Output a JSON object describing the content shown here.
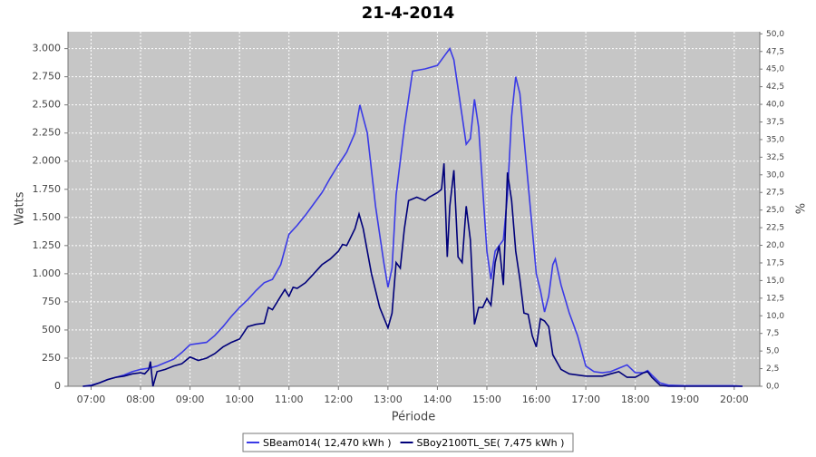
{
  "chart_data": {
    "type": "line",
    "title": "21-4-2014",
    "x_label": "Période",
    "y_label": "Watts",
    "y2_label": "%",
    "xlim": [
      "06:32",
      "20:31"
    ],
    "xticks": [
      "07:00",
      "08:00",
      "09:00",
      "10:00",
      "11:00",
      "12:00",
      "13:00",
      "14:00",
      "15:00",
      "16:00",
      "17:00",
      "18:00",
      "19:00",
      "20:00"
    ],
    "ylim": [
      0,
      3150
    ],
    "yticks": [
      {
        "value": 0,
        "label": "0"
      },
      {
        "value": 250,
        "label": "250"
      },
      {
        "value": 500,
        "label": "500"
      },
      {
        "value": 750,
        "label": "750"
      },
      {
        "value": 1000,
        "label": "1.000"
      },
      {
        "value": 1250,
        "label": "1.250"
      },
      {
        "value": 1500,
        "label": "1.500"
      },
      {
        "value": 1750,
        "label": "1.750"
      },
      {
        "value": 2000,
        "label": "2.000"
      },
      {
        "value": 2250,
        "label": "2.250"
      },
      {
        "value": 2500,
        "label": "2.500"
      },
      {
        "value": 2750,
        "label": "2.750"
      },
      {
        "value": 3000,
        "label": "3.000"
      }
    ],
    "y2lim": [
      0,
      50.3
    ],
    "y2ticks": [
      {
        "value": 0,
        "label": "0,0"
      },
      {
        "value": 2.5,
        "label": "2,5"
      },
      {
        "value": 5,
        "label": "5,0"
      },
      {
        "value": 7.5,
        "label": "7,5"
      },
      {
        "value": 10,
        "label": "10,0"
      },
      {
        "value": 12.5,
        "label": "12,5"
      },
      {
        "value": 15,
        "label": "15,0"
      },
      {
        "value": 17.5,
        "label": "17,5"
      },
      {
        "value": 20,
        "label": "20,0"
      },
      {
        "value": 22.5,
        "label": "22,5"
      },
      {
        "value": 25,
        "label": "25,0"
      },
      {
        "value": 27.5,
        "label": "27,5"
      },
      {
        "value": 30,
        "label": "30,0"
      },
      {
        "value": 32.5,
        "label": "32,5"
      },
      {
        "value": 35,
        "label": "35,0"
      },
      {
        "value": 37.5,
        "label": "37,5"
      },
      {
        "value": 40,
        "label": "40,0"
      },
      {
        "value": 42.5,
        "label": "42,5"
      },
      {
        "value": 45,
        "label": "45,0"
      },
      {
        "value": 47.5,
        "label": "47,5"
      },
      {
        "value": 50,
        "label": "50,0"
      }
    ],
    "grid": true,
    "legend": "bottom",
    "series": [
      {
        "name": "SBeam014( 12,470 kWh )",
        "color": "#3a3ae6",
        "x": [
          "06:50",
          "07:00",
          "07:10",
          "07:20",
          "07:30",
          "07:40",
          "07:50",
          "08:00",
          "08:10",
          "08:20",
          "08:30",
          "08:40",
          "08:50",
          "09:00",
          "09:10",
          "09:20",
          "09:30",
          "09:40",
          "09:50",
          "10:00",
          "10:10",
          "10:20",
          "10:30",
          "10:40",
          "10:50",
          "11:00",
          "11:10",
          "11:20",
          "11:30",
          "11:40",
          "11:50",
          "12:00",
          "12:10",
          "12:20",
          "12:26",
          "12:35",
          "12:45",
          "12:55",
          "13:00",
          "13:05",
          "13:10",
          "13:20",
          "13:30",
          "13:45",
          "14:00",
          "14:10",
          "14:15",
          "14:20",
          "14:30",
          "14:35",
          "14:40",
          "14:45",
          "14:50",
          "15:00",
          "15:05",
          "15:10",
          "15:20",
          "15:25",
          "15:30",
          "15:35",
          "15:40",
          "15:50",
          "16:00",
          "16:05",
          "16:10",
          "16:15",
          "16:20",
          "16:23",
          "16:30",
          "16:40",
          "16:50",
          "17:00",
          "17:10",
          "17:20",
          "17:30",
          "17:40",
          "17:50",
          "18:00",
          "18:10",
          "18:15",
          "18:20",
          "18:30",
          "18:40",
          "19:00",
          "20:00",
          "20:10"
        ],
        "values": [
          0,
          10,
          30,
          60,
          80,
          100,
          130,
          150,
          160,
          180,
          210,
          240,
          300,
          370,
          380,
          390,
          450,
          530,
          620,
          700,
          770,
          850,
          920,
          950,
          1080,
          1350,
          1430,
          1520,
          1620,
          1720,
          1850,
          1970,
          2080,
          2250,
          2500,
          2250,
          1600,
          1100,
          880,
          1050,
          1700,
          2300,
          2800,
          2820,
          2850,
          2950,
          3000,
          2900,
          2400,
          2150,
          2200,
          2550,
          2300,
          1200,
          950,
          1200,
          1300,
          1700,
          2400,
          2750,
          2600,
          1800,
          1000,
          850,
          660,
          800,
          1080,
          1130,
          900,
          650,
          450,
          180,
          130,
          120,
          130,
          160,
          190,
          120,
          120,
          140,
          100,
          30,
          10,
          5,
          5,
          0
        ]
      },
      {
        "name": "SBoy2100TL_SE( 7,475 kWh )",
        "color": "#00007a",
        "x": [
          "06:50",
          "07:00",
          "07:10",
          "07:20",
          "07:30",
          "07:40",
          "07:50",
          "08:00",
          "08:05",
          "08:10",
          "08:12",
          "08:15",
          "08:20",
          "08:30",
          "08:40",
          "08:50",
          "09:00",
          "09:10",
          "09:20",
          "09:30",
          "09:40",
          "09:50",
          "10:00",
          "10:10",
          "10:20",
          "10:30",
          "10:35",
          "10:40",
          "10:50",
          "10:55",
          "11:00",
          "11:05",
          "11:10",
          "11:20",
          "11:30",
          "11:40",
          "11:50",
          "12:00",
          "12:05",
          "12:10",
          "12:20",
          "12:25",
          "12:30",
          "12:40",
          "12:50",
          "13:00",
          "13:05",
          "13:10",
          "13:15",
          "13:20",
          "13:25",
          "13:35",
          "13:45",
          "13:50",
          "14:00",
          "14:05",
          "14:08",
          "14:12",
          "14:15",
          "14:20",
          "14:25",
          "14:30",
          "14:35",
          "14:40",
          "14:45",
          "14:50",
          "14:55",
          "15:00",
          "15:05",
          "15:10",
          "15:15",
          "15:20",
          "15:25",
          "15:30",
          "15:35",
          "15:40",
          "15:45",
          "15:50",
          "15:55",
          "16:00",
          "16:05",
          "16:10",
          "16:15",
          "16:20",
          "16:30",
          "16:40",
          "16:50",
          "17:00",
          "17:10",
          "17:20",
          "17:30",
          "17:40",
          "17:50",
          "18:00",
          "18:10",
          "18:15",
          "18:20",
          "18:30",
          "18:40",
          "20:10"
        ],
        "values": [
          0,
          5,
          30,
          60,
          80,
          90,
          110,
          120,
          110,
          150,
          220,
          0,
          130,
          150,
          180,
          200,
          260,
          230,
          250,
          290,
          350,
          390,
          420,
          530,
          550,
          560,
          700,
          680,
          800,
          860,
          800,
          880,
          870,
          920,
          1000,
          1080,
          1130,
          1200,
          1260,
          1250,
          1400,
          1530,
          1400,
          1000,
          700,
          520,
          650,
          1100,
          1050,
          1400,
          1650,
          1680,
          1650,
          1680,
          1720,
          1750,
          1980,
          1150,
          1600,
          1920,
          1150,
          1100,
          1600,
          1300,
          550,
          700,
          700,
          780,
          720,
          1100,
          1250,
          900,
          1900,
          1650,
          1200,
          950,
          650,
          640,
          450,
          350,
          600,
          580,
          530,
          280,
          150,
          110,
          100,
          90,
          90,
          90,
          110,
          130,
          80,
          80,
          120,
          130,
          80,
          10,
          0,
          0
        ]
      }
    ]
  }
}
